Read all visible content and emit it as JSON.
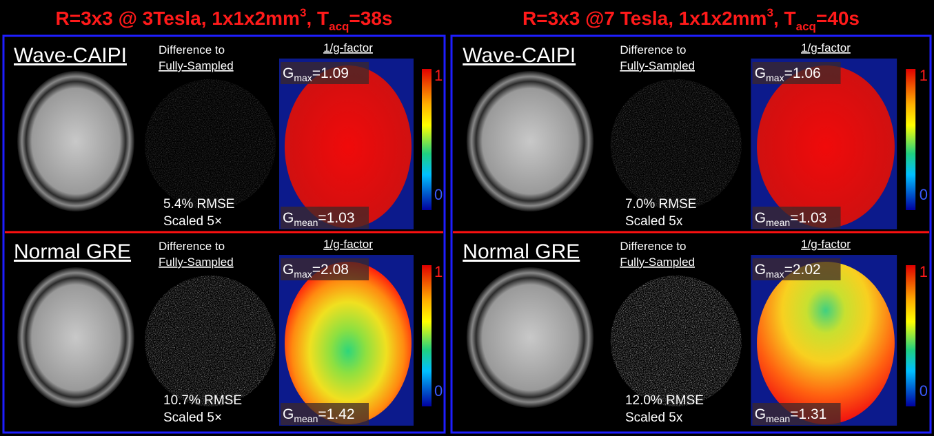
{
  "panels": [
    {
      "title": {
        "main": "R=3x3 @ 3Tesla, 1x1x2mm",
        "sup": "3",
        "mid": ", T",
        "sub": "acq",
        "end": "=38s"
      },
      "rows": [
        {
          "method": "Wave-CAIPI",
          "diff_title": "Difference to",
          "diff_subtitle": "Fully-Sampled",
          "gmap_title": "1/g-factor",
          "gmax": {
            "symbol": "G",
            "sub": "max",
            "value": "=1.09"
          },
          "gmean": {
            "symbol": "G",
            "sub": "mean",
            "value": "=1.03"
          },
          "rmse": "5.4% RMSE",
          "scale": "Scaled 5×",
          "colorbar": {
            "max": 1,
            "min": 0
          }
        },
        {
          "method": "Normal GRE",
          "diff_title": "Difference to",
          "diff_subtitle": "Fully-Sampled",
          "gmap_title": "1/g-factor",
          "gmax": {
            "symbol": "G",
            "sub": "max",
            "value": "=2.08"
          },
          "gmean": {
            "symbol": "G",
            "sub": "mean",
            "value": "=1.42"
          },
          "rmse": "10.7% RMSE",
          "scale": "Scaled 5×",
          "colorbar": {
            "max": 1,
            "min": 0
          }
        }
      ]
    },
    {
      "title": {
        "main": "R=3x3 @7 Tesla, 1x1x2mm",
        "sup": "3",
        "mid": ", T",
        "sub": "acq",
        "end": "=40s"
      },
      "rows": [
        {
          "method": "Wave-CAIPI",
          "diff_title": "Difference to",
          "diff_subtitle": "Fully-Sampled",
          "gmap_title": "1/g-factor",
          "gmax": {
            "symbol": "G",
            "sub": "max",
            "value": "=1.06"
          },
          "gmean": {
            "symbol": "G",
            "sub": "mean",
            "value": "=1.03"
          },
          "rmse": "7.0% RMSE",
          "scale": "Scaled 5x",
          "colorbar": {
            "max": 1,
            "min": 0
          }
        },
        {
          "method": "Normal GRE",
          "diff_title": "Difference to",
          "diff_subtitle": "Fully-Sampled",
          "gmap_title": "1/g-factor",
          "gmax": {
            "symbol": "G",
            "sub": "max",
            "value": "=2.02"
          },
          "gmean": {
            "symbol": "G",
            "sub": "mean",
            "value": "=1.31"
          },
          "rmse": "12.0% RMSE",
          "scale": "Scaled 5x",
          "colorbar": {
            "max": 1,
            "min": 0
          }
        }
      ]
    }
  ]
}
